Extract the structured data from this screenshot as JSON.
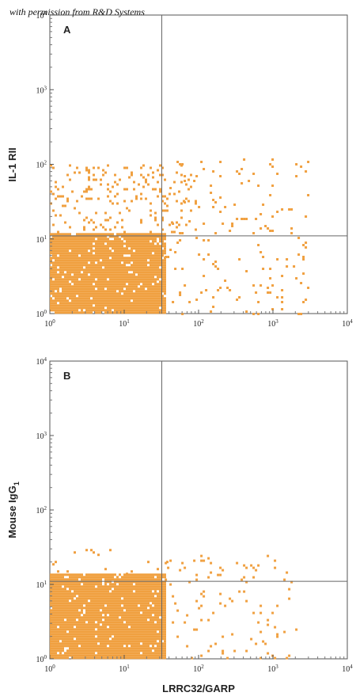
{
  "watermark": "with permission from R&D Systems",
  "chart_data": [
    {
      "type": "scatter",
      "panel_label": "A",
      "xlabel": "",
      "ylabel": "IL-1 RII",
      "x_scale": "log",
      "y_scale": "log",
      "xlim": [
        1,
        10000
      ],
      "ylim": [
        1,
        10000
      ],
      "x_ticks": [
        "10^0",
        "10^1",
        "10^2",
        "10^3",
        "10^4"
      ],
      "y_ticks": [
        "10^0",
        "10^1",
        "10^2",
        "10^3",
        "10^4"
      ],
      "quadrant_gates": {
        "x": 32,
        "y": 11
      },
      "dot_color": "#f0a040",
      "density": {
        "core": {
          "x": [
            1,
            35
          ],
          "y": [
            1,
            12
          ],
          "fill": 0.93
        },
        "upper_spread": {
          "x": [
            1,
            90
          ],
          "y": [
            12,
            100
          ],
          "fill": 0.12
        },
        "right_spread": {
          "x": [
            35,
            3000
          ],
          "y": [
            1,
            120
          ],
          "fill": 0.04
        }
      }
    },
    {
      "type": "scatter",
      "panel_label": "B",
      "xlabel": "LRRC32/GARP",
      "ylabel": "Mouse IgG",
      "ylabel_sub": "1",
      "x_scale": "log",
      "y_scale": "log",
      "xlim": [
        1,
        10000
      ],
      "ylim": [
        1,
        10000
      ],
      "x_ticks": [
        "10^0",
        "10^1",
        "10^2",
        "10^3",
        "10^4"
      ],
      "y_ticks": [
        "10^0",
        "10^1",
        "10^2",
        "10^3",
        "10^4"
      ],
      "quadrant_gates": {
        "x": 32,
        "y": 11
      },
      "dot_color": "#f0a040",
      "density": {
        "core": {
          "x": [
            1,
            35
          ],
          "y": [
            1,
            14
          ],
          "fill": 0.95
        },
        "upper_spread": {
          "x": [
            1,
            40
          ],
          "y": [
            14,
            30
          ],
          "fill": 0.03
        },
        "right_spread": {
          "x": [
            35,
            2000
          ],
          "y": [
            1,
            25
          ],
          "fill": 0.05
        }
      }
    }
  ]
}
